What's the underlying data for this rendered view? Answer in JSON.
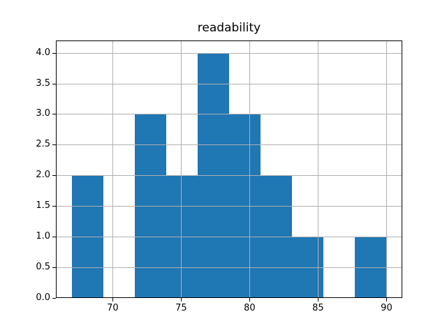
{
  "chart_data": {
    "type": "histogram",
    "title": "readability",
    "xlabel": "",
    "ylabel": "",
    "bin_edges": [
      67.0,
      69.3,
      71.6,
      73.9,
      76.2,
      78.5,
      80.8,
      83.1,
      85.4,
      87.7,
      90.0
    ],
    "counts": [
      2,
      0,
      3,
      2,
      4,
      3,
      2,
      1,
      0,
      1
    ],
    "xlim": [
      65.85,
      91.15
    ],
    "ylim": [
      0,
      4.2
    ],
    "xticks": [
      70,
      75,
      80,
      85,
      90
    ],
    "xtick_labels": [
      "70",
      "75",
      "80",
      "85",
      "90"
    ],
    "yticks": [
      0,
      0.5,
      1,
      1.5,
      2,
      2.5,
      3,
      3.5,
      4
    ],
    "ytick_labels": [
      "0.0",
      "0.5",
      "1.0",
      "1.5",
      "2.0",
      "2.5",
      "3.0",
      "3.5",
      "4.0"
    ],
    "grid": true,
    "grid_on_top_of_bars": true,
    "legend": false,
    "bar_color": "#1f77b4",
    "grid_color": "#b0b0b0",
    "axis_color": "#000000",
    "background_color": "#ffffff"
  }
}
